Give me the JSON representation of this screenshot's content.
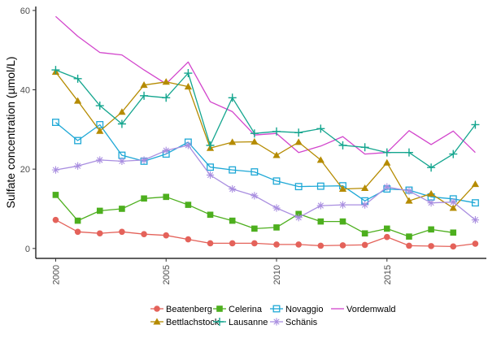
{
  "chart_data": {
    "type": "line",
    "title": "",
    "xlabel": "",
    "ylabel": "Sulfate concentration (µmol/L)",
    "xlim": [
      1999.1,
      2019.5
    ],
    "ylim": [
      -2.5,
      61
    ],
    "xticks": [
      2000,
      2005,
      2010,
      2015
    ],
    "yticks": [
      0,
      20,
      40,
      60
    ],
    "grid": false,
    "legend_position": "bottom",
    "series": [
      {
        "name": "Beatenberg",
        "color": "#e4625a",
        "marker": "circle",
        "x": [
          2000,
          2001,
          2002,
          2003,
          2004,
          2005,
          2006,
          2007,
          2008,
          2009,
          2010,
          2011,
          2012,
          2013,
          2014,
          2015,
          2016,
          2017,
          2018,
          2019
        ],
        "y": [
          7.2,
          4.2,
          3.8,
          4.2,
          3.6,
          3.3,
          2.3,
          1.3,
          1.3,
          1.3,
          1.0,
          1.0,
          0.7,
          0.8,
          0.9,
          2.9,
          0.7,
          0.6,
          0.5,
          1.2
        ]
      },
      {
        "name": "Celerina",
        "color": "#4daf1e",
        "marker": "square",
        "x": [
          2000,
          2001,
          2002,
          2003,
          2004,
          2005,
          2006,
          2007,
          2008,
          2009,
          2010,
          2011,
          2012,
          2013,
          2014,
          2015,
          2016,
          2017,
          2018
        ],
        "y": [
          13.5,
          7.0,
          9.5,
          10.0,
          12.6,
          13.0,
          11.0,
          8.5,
          7.0,
          5.0,
          5.3,
          8.7,
          6.8,
          6.8,
          3.8,
          5.0,
          3.0,
          4.8,
          4.0
        ]
      },
      {
        "name": "Novaggio",
        "color": "#1ea8d6",
        "marker": "square-open",
        "x": [
          2000,
          2001,
          2002,
          2003,
          2004,
          2005,
          2006,
          2007,
          2008,
          2009,
          2010,
          2011,
          2012,
          2013,
          2014,
          2015,
          2016,
          2017,
          2018,
          2019
        ],
        "y": [
          31.8,
          27.2,
          31.2,
          23.5,
          22.0,
          23.8,
          26.8,
          20.5,
          19.8,
          19.3,
          17.0,
          15.6,
          15.7,
          15.8,
          12.0,
          15.0,
          14.7,
          13.0,
          12.5,
          11.5
        ]
      },
      {
        "name": "Vordemwald",
        "color": "#d245cc",
        "marker": "none",
        "x": [
          2000,
          2001,
          2002,
          2003,
          2004,
          2005,
          2006,
          2007,
          2008,
          2009,
          2010,
          2011,
          2012,
          2013,
          2014,
          2015,
          2016,
          2017,
          2018,
          2019
        ],
        "y": [
          58.5,
          53.5,
          49.4,
          48.8,
          45.0,
          41.5,
          47.0,
          37.0,
          34.5,
          28.6,
          29.0,
          24.2,
          25.8,
          28.2,
          23.8,
          24.2,
          29.7,
          26.2,
          29.6,
          24.2
        ]
      },
      {
        "name": "Bettlachstock",
        "color": "#b58b00",
        "marker": "triangle",
        "x": [
          2000,
          2001,
          2002,
          2003,
          2004,
          2005,
          2006,
          2007,
          2008,
          2009,
          2010,
          2011,
          2012,
          2013,
          2014,
          2015,
          2016,
          2017,
          2018,
          2019
        ],
        "y": [
          44.5,
          37.2,
          29.6,
          34.4,
          41.2,
          42.0,
          40.8,
          25.3,
          26.8,
          26.9,
          23.5,
          26.8,
          22.3,
          15.0,
          15.2,
          21.6,
          12.0,
          13.8,
          10.2,
          16.2
        ]
      },
      {
        "name": "Lausanne",
        "color": "#13a58e",
        "marker": "plus",
        "x": [
          2000,
          2001,
          2002,
          2003,
          2004,
          2005,
          2006,
          2007,
          2008,
          2009,
          2010,
          2011,
          2012,
          2013,
          2014,
          2015,
          2016,
          2017,
          2018,
          2019
        ],
        "y": [
          45.0,
          42.8,
          36.0,
          31.4,
          38.5,
          38.0,
          44.2,
          26.0,
          38.0,
          29.0,
          29.5,
          29.2,
          30.2,
          26.0,
          25.5,
          24.2,
          24.2,
          20.4,
          23.8,
          31.2
        ]
      },
      {
        "name": "Schänis",
        "color": "#a98ee0",
        "marker": "asterisk",
        "x": [
          2000,
          2001,
          2002,
          2003,
          2004,
          2005,
          2006,
          2007,
          2008,
          2009,
          2010,
          2011,
          2012,
          2013,
          2014,
          2015,
          2016,
          2017,
          2018,
          2019
        ],
        "y": [
          19.8,
          20.8,
          22.3,
          22.0,
          22.3,
          24.7,
          26.0,
          18.5,
          15.0,
          13.3,
          10.2,
          7.8,
          10.8,
          11.0,
          11.0,
          15.5,
          14.5,
          11.5,
          11.7,
          7.2
        ]
      }
    ]
  }
}
